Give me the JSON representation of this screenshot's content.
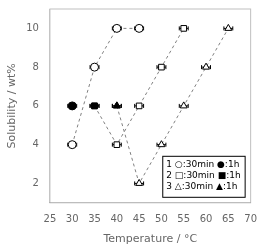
{
  "chart_data": {
    "type": "scatter",
    "xlabel": "Temperature / °C",
    "ylabel": "Solubility / wt%",
    "xlim": [
      25,
      70
    ],
    "ylim": [
      1,
      11
    ],
    "xticks": [
      25,
      30,
      35,
      40,
      45,
      50,
      55,
      60,
      65,
      70
    ],
    "yticks": [
      2,
      4,
      6,
      8,
      10
    ],
    "grid": false,
    "annotations": [
      "1 ○:30min ●:1h",
      "2 □:30min ■:1h",
      "3 △:30min ▲:1h"
    ],
    "series": [
      {
        "type": "line",
        "line_style": "dashed",
        "color": "gray",
        "x": [
          30,
          35,
          40,
          45
        ],
        "values": [
          4,
          8,
          10,
          10
        ]
      },
      {
        "type": "line",
        "line_style": "dashed",
        "color": "gray",
        "x": [
          35,
          40,
          45,
          50,
          55
        ],
        "values": [
          6,
          4,
          6,
          8,
          10
        ]
      },
      {
        "type": "line",
        "line_style": "dashed",
        "color": "gray",
        "x": [
          40,
          45,
          50,
          55,
          60,
          65
        ],
        "values": [
          6,
          2,
          4,
          6,
          8,
          10
        ]
      },
      {
        "type": "scatter",
        "marker": "circle",
        "color": "white",
        "x": [
          30,
          35,
          40,
          45
        ],
        "values": [
          4,
          8,
          10,
          10
        ],
        "xerr": [
          1,
          1,
          1,
          1
        ]
      },
      {
        "type": "scatter",
        "marker": "circle",
        "color": "black",
        "x": [
          30
        ],
        "values": [
          6
        ],
        "xerr": [
          1
        ]
      },
      {
        "type": "scatter",
        "marker": "square",
        "color": "white",
        "x": [
          35,
          40,
          45,
          50,
          55
        ],
        "values": [
          6,
          4,
          6,
          8,
          10
        ],
        "xerr": [
          1,
          1,
          1,
          1,
          1
        ]
      },
      {
        "type": "scatter",
        "marker": "square",
        "color": "black",
        "x": [
          35
        ],
        "values": [
          6
        ],
        "xerr": [
          1
        ]
      },
      {
        "type": "scatter",
        "marker": "triangle",
        "color": "white",
        "x": [
          40,
          45,
          50,
          55,
          60,
          65
        ],
        "values": [
          6,
          2,
          4,
          6,
          8,
          10
        ],
        "xerr": [
          1,
          1,
          1,
          1,
          1,
          1
        ]
      },
      {
        "type": "scatter",
        "marker": "triangle",
        "color": "black",
        "x": [
          40
        ],
        "values": [
          6
        ],
        "xerr": [
          1
        ]
      }
    ]
  }
}
